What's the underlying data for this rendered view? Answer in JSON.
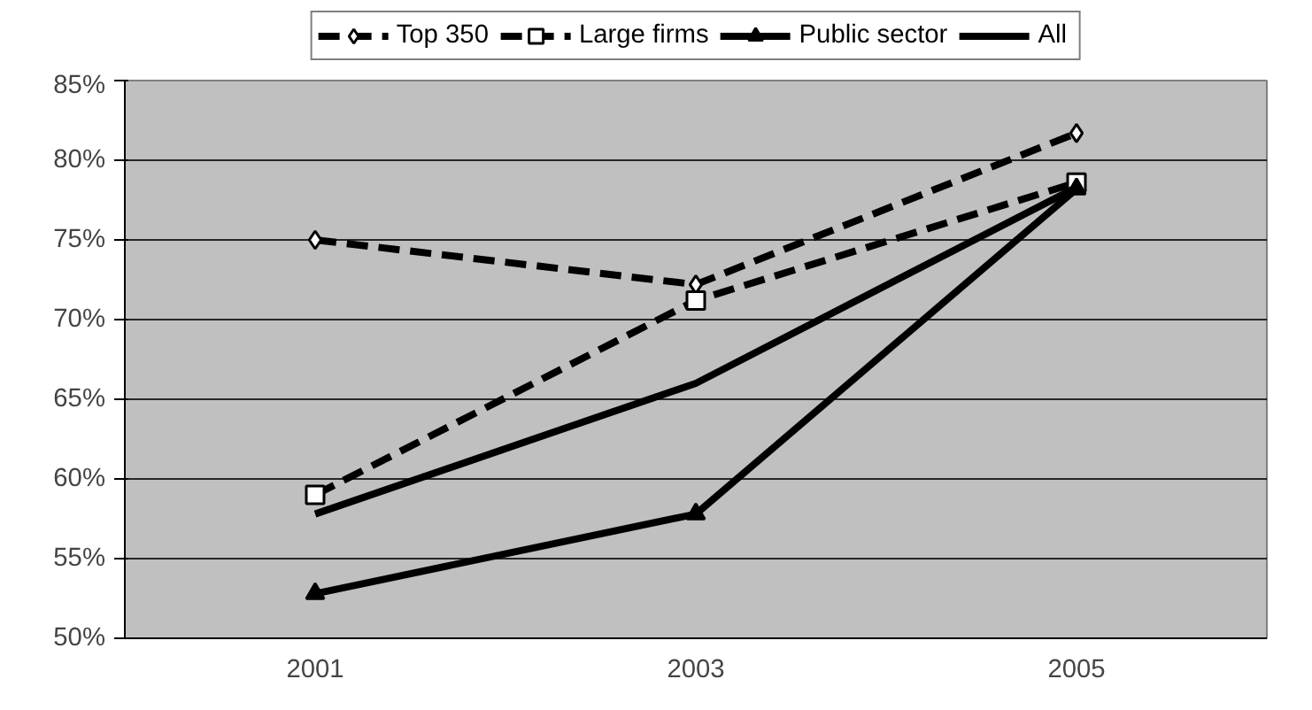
{
  "chart_data": {
    "type": "line",
    "categories": [
      "2001",
      "2003",
      "2005"
    ],
    "series": [
      {
        "name": "Top 350",
        "color": "#000000",
        "values": [
          75.0,
          72.2,
          81.7
        ],
        "marker": "diamond",
        "line_style": "dashed"
      },
      {
        "name": "Large firms",
        "color": "#000000",
        "values": [
          59.0,
          71.2,
          78.6
        ],
        "marker": "square",
        "line_style": "dashed"
      },
      {
        "name": "Public sector",
        "color": "#000000",
        "values": [
          52.8,
          57.8,
          78.2
        ],
        "marker": "triangle",
        "line_style": "solid"
      },
      {
        "name": "All",
        "color": "#000000",
        "values": [
          57.8,
          66.0,
          78.3
        ],
        "marker": "none",
        "line_style": "solid"
      }
    ],
    "ylim": [
      50,
      85
    ],
    "yticks": [
      {
        "value": 50,
        "label": "50%"
      },
      {
        "value": 55,
        "label": "55%"
      },
      {
        "value": 60,
        "label": "60%"
      },
      {
        "value": 65,
        "label": "65%"
      },
      {
        "value": 70,
        "label": "70%"
      },
      {
        "value": 75,
        "label": "75%"
      },
      {
        "value": 80,
        "label": "80%"
      },
      {
        "value": 85,
        "label": "85%"
      }
    ],
    "grid": "y",
    "legend": "top"
  }
}
